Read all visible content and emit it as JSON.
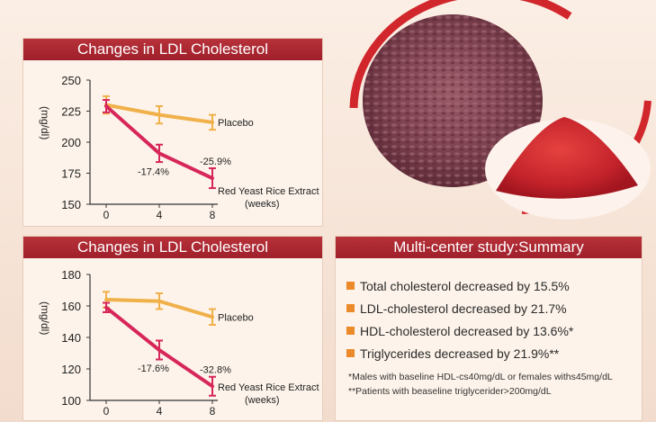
{
  "colors": {
    "placebo": "#f0b04a",
    "extract": "#d7265a",
    "header": "#a8242f",
    "bullet": "#eb8a2a",
    "yeast_rice": "#7e4452",
    "powder": "#c9252e"
  },
  "illustration": {
    "left": "red-yeast-rice-grains",
    "right": "red-yeast-rice-powder"
  },
  "chart_data": [
    {
      "type": "line",
      "title": "Changes in LDL Cholesterol",
      "ylabel": "(mg/dl)",
      "xlabel": "(weeks)",
      "x": [
        0,
        4,
        8
      ],
      "ylim": [
        150,
        250
      ],
      "yticks": [
        150,
        175,
        200,
        225,
        250
      ],
      "grid": false,
      "series": [
        {
          "name": "Placebo",
          "values": [
            230,
            222,
            216
          ],
          "errors": [
            7,
            7,
            6
          ]
        },
        {
          "name": "Red Yeast Rice Extract",
          "values": [
            229,
            191,
            171
          ],
          "errors": [
            5,
            7,
            8
          ]
        }
      ],
      "annotations": [
        "-17.4%",
        "-25.9%"
      ]
    },
    {
      "type": "line",
      "title": "Changes in LDL Cholesterol",
      "ylabel": "(mg/dl)",
      "xlabel": "(weeks)",
      "x": [
        0,
        4,
        8
      ],
      "ylim": [
        100,
        180
      ],
      "yticks": [
        100,
        120,
        140,
        160,
        180
      ],
      "grid": false,
      "series": [
        {
          "name": "Placebo",
          "values": [
            164,
            163,
            153
          ],
          "errors": [
            5,
            5,
            5
          ]
        },
        {
          "name": "Red Yeast Rice Extract",
          "values": [
            159,
            132,
            109
          ],
          "errors": [
            3,
            6,
            6
          ]
        }
      ],
      "annotations": [
        "-17.6%",
        "-32.8%"
      ]
    }
  ],
  "summary": {
    "title": "Multi-center study:Summary",
    "items": [
      "Total cholesterol decreased by 15.5%",
      "LDL-cholesterol decreased by 21.7%",
      "HDL-cholesterol decreased by 13.6%*",
      "Triglycerides decreased by 21.9%**"
    ],
    "notes": [
      "*Males with baseline HDL-cs40mg/dL or females withs45mg/dL",
      "**Patients with beaseline triglycerider>200mg/dL"
    ]
  }
}
